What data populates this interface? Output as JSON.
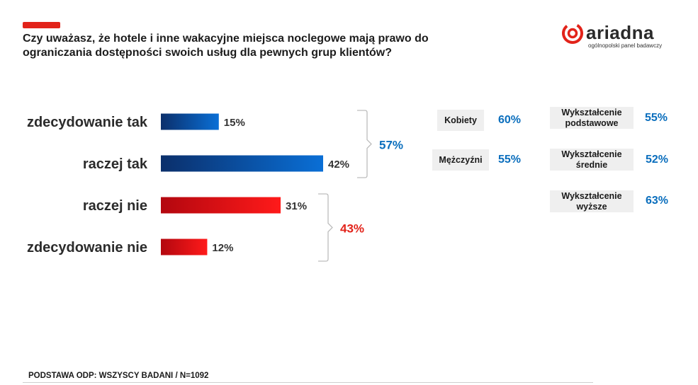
{
  "header": {
    "title": "Czy uważasz, że hotele i inne wakacyjne miejsca noclegowe mają prawo do ograniczania dostępności swoich usług dla pewnych grup klientów?"
  },
  "logo": {
    "word": "ariadna",
    "tagline": "ogólnopolski panel badawczy"
  },
  "chart_data": {
    "type": "bar",
    "orientation": "horizontal",
    "categories": [
      "zdecydowanie tak",
      "raczej tak",
      "raczej nie",
      "zdecydowanie nie"
    ],
    "values": [
      15,
      42,
      31,
      12
    ],
    "value_labels": [
      "15%",
      "42%",
      "31%",
      "12%"
    ],
    "colors": [
      "#0a5cb4",
      "#0a5cb4",
      "#e2231a",
      "#e2231a"
    ],
    "groups": [
      {
        "label": "57%",
        "members": [
          0,
          1
        ],
        "color": "#0a6ebd"
      },
      {
        "label": "43%",
        "members": [
          2,
          3
        ],
        "color": "#e2231a"
      }
    ],
    "xlim": [
      0,
      42
    ],
    "grid": false
  },
  "demographics": {
    "gender": [
      {
        "label": "Kobiety",
        "value": "60%"
      },
      {
        "label": "Mężczyźni",
        "value": "55%"
      }
    ],
    "education": [
      {
        "label": "Wykształcenie podstawowe",
        "value": "55%"
      },
      {
        "label": "Wykształcenie średnie",
        "value": "52%"
      },
      {
        "label": "Wykształcenie wyższe",
        "value": "63%"
      }
    ]
  },
  "footer": {
    "base": "PODSTAWA ODP: WSZYSCY BADANI / N=1092"
  },
  "colors": {
    "accent_red": "#e2231a",
    "accent_blue": "#0a6ebd"
  }
}
